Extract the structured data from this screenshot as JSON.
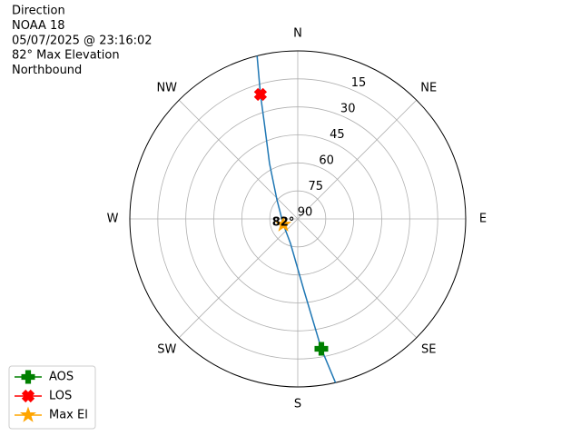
{
  "chart_data": {
    "type": "polar",
    "title_lines": [
      "Direction",
      "NOAA 18",
      "05/07/2025 @ 23:16:02",
      "82° Max Elevation",
      "Northbound"
    ],
    "directions": [
      "N",
      "NE",
      "E",
      "SE",
      "S",
      "SW",
      "W",
      "NW"
    ],
    "rlim": [
      90,
      0
    ],
    "rticks": [
      15,
      30,
      45,
      60,
      75,
      90
    ],
    "grid": true,
    "legend": "lower left",
    "track": {
      "color": "#1f77b4",
      "azimuth": [
        167,
        169.7,
        175,
        196.5,
        249,
        312.4,
        333,
        340.8,
        343.3,
        346
      ],
      "elevation": [
        0,
        19.3,
        51.4,
        76.3,
        81.7,
        74.9,
        56.7,
        35.4,
        20.4,
        0
      ]
    },
    "series": [
      {
        "name": "AOS",
        "color": "#008000",
        "marker": "plus",
        "azimuth": [
          169.7
        ],
        "elevation": [
          19.3
        ]
      },
      {
        "name": "LOS",
        "color": "#ff0000",
        "marker": "x",
        "azimuth": [
          343.3
        ],
        "elevation": [
          20.4
        ]
      },
      {
        "name": "Max El",
        "color": "#ffa500",
        "marker": "star",
        "azimuth": [
          249
        ],
        "elevation": [
          81.7
        ]
      }
    ],
    "annotation": "82°"
  }
}
